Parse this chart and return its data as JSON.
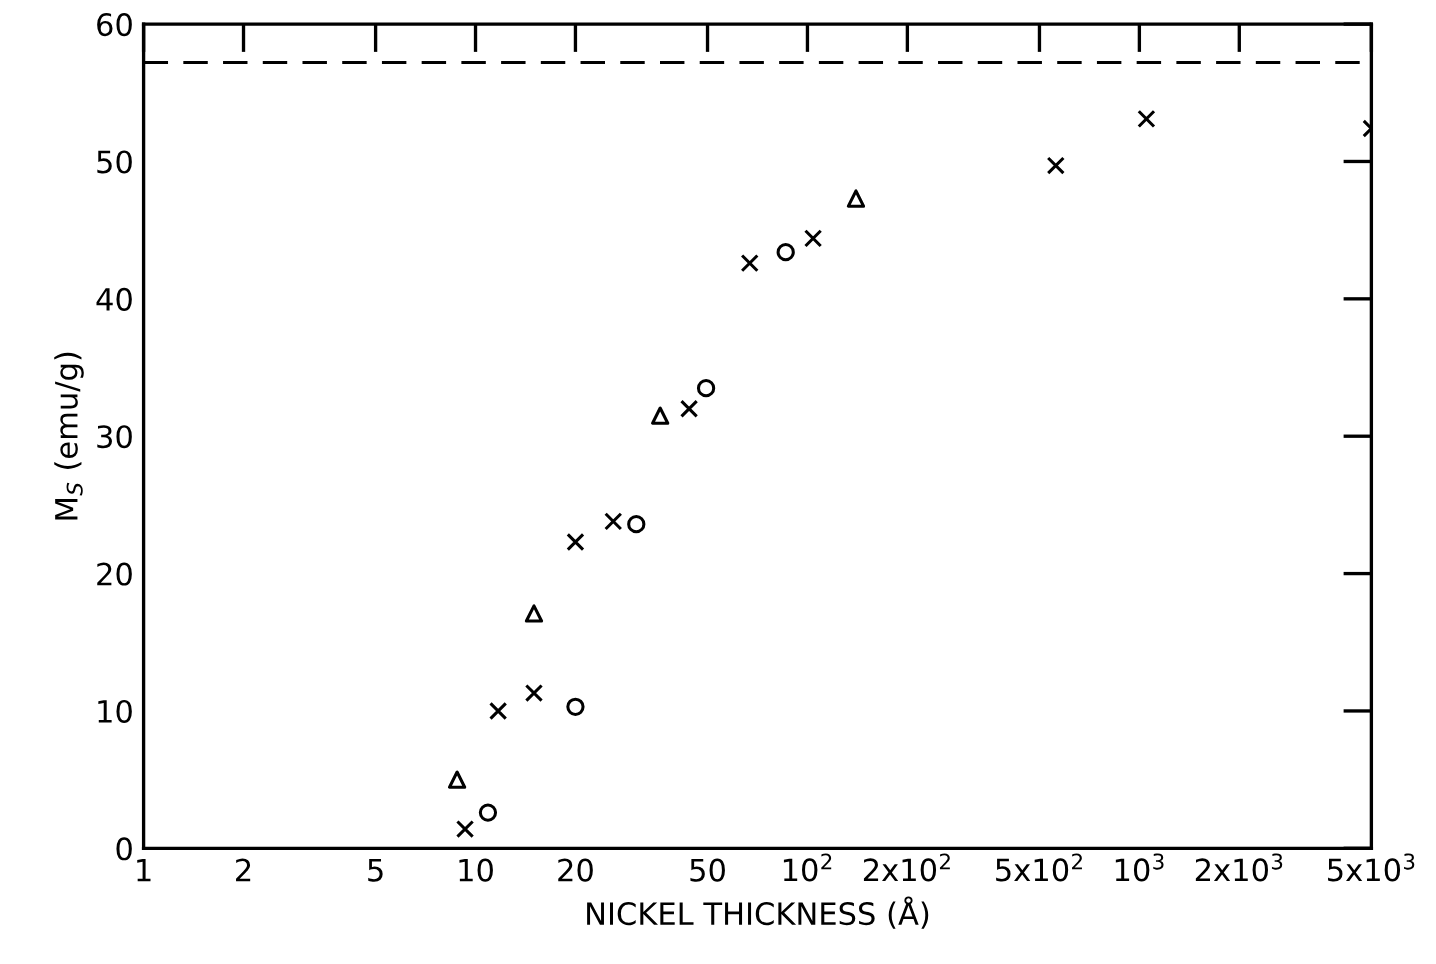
{
  "chart_data": {
    "type": "scatter",
    "xlabel": "NICKEL THICKNESS (Å)",
    "ylabel": "M$_{S}$ (emu/g)",
    "log": "x",
    "xlim": [
      1,
      5000
    ],
    "ylim": [
      0,
      60
    ],
    "xticks": [
      1,
      2,
      5,
      10,
      20,
      50,
      {
        "value": 100,
        "label": "10$^{2}$"
      },
      {
        "value": 200,
        "label": "2x10$^{2}$"
      },
      {
        "value": 500,
        "label": "5x10$^{2}$"
      },
      {
        "value": 1000,
        "label": "10$^{3}$"
      },
      {
        "value": 2000,
        "label": "2x10$^{3}$"
      },
      {
        "value": 5000,
        "label": "5x10$^{3}$"
      }
    ],
    "yticks": [
      0,
      10,
      20,
      30,
      40,
      50,
      60
    ],
    "grid": false,
    "legend": false,
    "ref_lines": [
      {
        "axis": "y",
        "value": 57.2,
        "line_style": "dashed",
        "color": "#000000"
      }
    ],
    "series": [
      {
        "marker": "cross",
        "color": "#000000",
        "x": [
          9.3,
          11.7,
          15,
          20,
          26,
          44,
          67,
          104,
          560,
          1050,
          5000
        ],
        "values": [
          1.4,
          10,
          11.3,
          22.3,
          23.8,
          32,
          42.6,
          44.4,
          49.7,
          53.1,
          52.4
        ]
      },
      {
        "marker": "circle",
        "color": "#000000",
        "x": [
          10.9,
          20,
          30.5,
          49.5,
          86
        ],
        "values": [
          2.6,
          10.3,
          23.6,
          33.5,
          43.4
        ]
      },
      {
        "marker": "triangle",
        "color": "#000000",
        "x": [
          8.8,
          15,
          36,
          140
        ],
        "values": [
          5,
          17.1,
          31.5,
          47.3
        ]
      }
    ]
  }
}
